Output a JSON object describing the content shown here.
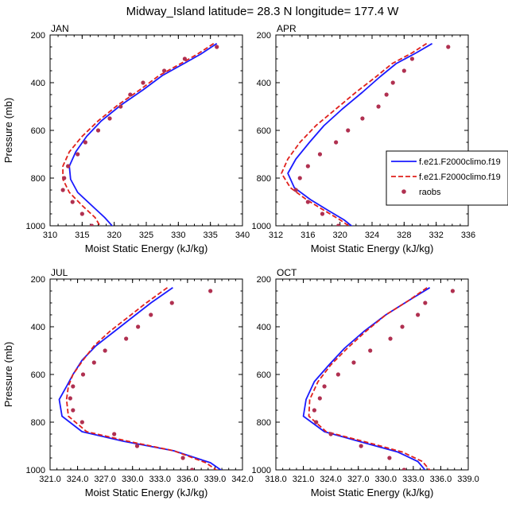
{
  "figure_title": "Midway_Island  latitude= 28.3 N longitude= 177.4 W",
  "legend": {
    "entries": [
      {
        "label": "f.e21.F2000climo.f19",
        "style": "solid",
        "color": "#1a1aff"
      },
      {
        "label": "f.e21.F2000climo.f19",
        "style": "dashed",
        "color": "#e0201c"
      },
      {
        "label": "raobs",
        "style": "dot",
        "color": "#b03050"
      }
    ]
  },
  "colors": {
    "model1": "#1a1aff",
    "model2": "#e0201c",
    "obs": "#b03050"
  },
  "chart_data": [
    {
      "type": "line",
      "panel_title": "JAN",
      "xlabel": "Moist Static Energy (kJ/kg)",
      "ylabel": "Pressure (mb)",
      "xlim": [
        310,
        340
      ],
      "ylim": [
        1000,
        200
      ],
      "y_reversed": true,
      "xticks": [
        310,
        315,
        320,
        325,
        330,
        335,
        340
      ],
      "xtick_labels": [
        "310",
        "315",
        "320",
        "325",
        "330",
        "335",
        "340"
      ],
      "yticks": [
        200,
        400,
        600,
        800,
        1000
      ],
      "ytick_labels": [
        "200",
        "400",
        "600",
        "800",
        "1000"
      ],
      "series": [
        {
          "role": "model1",
          "points": [
            [
              336.0,
              236
            ],
            [
              333.5,
              280
            ],
            [
              331.0,
              318
            ],
            [
              327.5,
              370
            ],
            [
              324.5,
              430
            ],
            [
              321.0,
              495
            ],
            [
              318.0,
              560
            ],
            [
              315.7,
              625
            ],
            [
              314.0,
              690
            ],
            [
              313.0,
              750
            ],
            [
              313.2,
              805
            ],
            [
              314.3,
              860
            ],
            [
              316.5,
              915
            ],
            [
              318.5,
              965
            ],
            [
              320.0,
              1010
            ]
          ]
        },
        {
          "role": "model2",
          "points": [
            [
              335.5,
              236
            ],
            [
              333.0,
              280
            ],
            [
              330.5,
              318
            ],
            [
              327.0,
              370
            ],
            [
              324.0,
              430
            ],
            [
              320.5,
              495
            ],
            [
              317.5,
              560
            ],
            [
              315.0,
              625
            ],
            [
              313.0,
              690
            ],
            [
              312.0,
              750
            ],
            [
              312.0,
              805
            ],
            [
              313.0,
              860
            ],
            [
              315.0,
              915
            ],
            [
              317.0,
              965
            ],
            [
              318.0,
              1010
            ]
          ]
        },
        {
          "role": "obs",
          "points": [
            [
              336.0,
              250
            ],
            [
              331.0,
              300
            ],
            [
              327.8,
              350
            ],
            [
              324.5,
              400
            ],
            [
              322.5,
              450
            ],
            [
              321.0,
              500
            ],
            [
              319.3,
              550
            ],
            [
              317.5,
              600
            ],
            [
              315.5,
              650
            ],
            [
              314.3,
              700
            ],
            [
              312.8,
              750
            ],
            [
              312.2,
              800
            ],
            [
              312.0,
              850
            ],
            [
              313.5,
              900
            ],
            [
              315.0,
              950
            ],
            [
              316.5,
              1000
            ]
          ]
        }
      ]
    },
    {
      "type": "line",
      "panel_title": "APR",
      "xlabel": "Moist Static Energy (kJ/kg)",
      "ylabel": "",
      "xlim": [
        312,
        336
      ],
      "ylim": [
        1000,
        200
      ],
      "y_reversed": true,
      "xticks": [
        312,
        316,
        320,
        324,
        328,
        332,
        336
      ],
      "xtick_labels": [
        "312",
        "316",
        "320",
        "324",
        "328",
        "332",
        "336"
      ],
      "yticks": [
        200,
        400,
        600,
        800,
        1000
      ],
      "ytick_labels": [
        "200",
        "400",
        "600",
        "800",
        "1000"
      ],
      "series": [
        {
          "role": "model1",
          "points": [
            [
              331.5,
              236
            ],
            [
              329.5,
              275
            ],
            [
              327.0,
              320
            ],
            [
              325.0,
              375
            ],
            [
              322.8,
              440
            ],
            [
              320.3,
              510
            ],
            [
              318.0,
              580
            ],
            [
              316.2,
              650
            ],
            [
              314.5,
              720
            ],
            [
              313.5,
              780
            ],
            [
              314.3,
              840
            ],
            [
              316.3,
              890
            ],
            [
              318.5,
              935
            ],
            [
              320.5,
              975
            ],
            [
              321.8,
              1010
            ]
          ]
        },
        {
          "role": "model2",
          "points": [
            [
              330.8,
              236
            ],
            [
              329.0,
              275
            ],
            [
              326.5,
              320
            ],
            [
              324.5,
              375
            ],
            [
              322.0,
              440
            ],
            [
              319.5,
              510
            ],
            [
              317.0,
              580
            ],
            [
              315.0,
              650
            ],
            [
              313.5,
              720
            ],
            [
              312.7,
              780
            ],
            [
              313.8,
              840
            ],
            [
              315.8,
              890
            ],
            [
              318.0,
              935
            ],
            [
              320.0,
              975
            ],
            [
              321.5,
              1010
            ]
          ]
        },
        {
          "role": "obs",
          "points": [
            [
              333.5,
              250
            ],
            [
              329.0,
              300
            ],
            [
              328.0,
              350
            ],
            [
              326.6,
              400
            ],
            [
              325.8,
              450
            ],
            [
              324.8,
              500
            ],
            [
              322.8,
              550
            ],
            [
              321.0,
              600
            ],
            [
              319.5,
              650
            ],
            [
              317.5,
              700
            ],
            [
              316.0,
              750
            ],
            [
              315.0,
              800
            ],
            [
              314.5,
              850
            ],
            [
              316.0,
              900
            ],
            [
              317.8,
              950
            ],
            [
              319.8,
              1000
            ]
          ]
        }
      ]
    },
    {
      "type": "line",
      "panel_title": "JUL",
      "xlabel": "Moist Static Energy (kJ/kg)",
      "ylabel": "Pressure (mb)",
      "xlim": [
        321,
        342
      ],
      "ylim": [
        1000,
        200
      ],
      "y_reversed": true,
      "xticks": [
        321,
        324,
        327,
        330,
        333,
        336,
        339,
        342
      ],
      "xtick_labels": [
        "321.0",
        "324.0",
        "327.0",
        "330.0",
        "333.0",
        "336.0",
        "339.0",
        "342.0"
      ],
      "yticks": [
        200,
        400,
        600,
        800,
        1000
      ],
      "ytick_labels": [
        "200",
        "400",
        "600",
        "800",
        "1000"
      ],
      "series": [
        {
          "role": "model1",
          "points": [
            [
              334.4,
              236
            ],
            [
              332.0,
              300
            ],
            [
              330.0,
              360
            ],
            [
              328.0,
              420
            ],
            [
              326.0,
              480
            ],
            [
              324.5,
              540
            ],
            [
              323.5,
              600
            ],
            [
              322.8,
              650
            ],
            [
              322.0,
              705
            ],
            [
              322.3,
              775
            ],
            [
              324.5,
              840
            ],
            [
              329.0,
              880
            ],
            [
              334.5,
              920
            ],
            [
              338.5,
              970
            ],
            [
              340.0,
              1010
            ]
          ]
        },
        {
          "role": "model2",
          "points": [
            [
              333.8,
              236
            ],
            [
              331.5,
              300
            ],
            [
              329.5,
              360
            ],
            [
              327.5,
              420
            ],
            [
              325.8,
              480
            ],
            [
              324.6,
              540
            ],
            [
              323.5,
              600
            ],
            [
              323.0,
              650
            ],
            [
              322.8,
              705
            ],
            [
              323.0,
              775
            ],
            [
              325.0,
              840
            ],
            [
              329.5,
              880
            ],
            [
              334.5,
              920
            ],
            [
              338.0,
              970
            ],
            [
              339.5,
              1010
            ]
          ]
        },
        {
          "role": "obs",
          "points": [
            [
              338.5,
              250
            ],
            [
              334.3,
              300
            ],
            [
              332.0,
              350
            ],
            [
              330.6,
              400
            ],
            [
              329.3,
              450
            ],
            [
              327.0,
              500
            ],
            [
              325.8,
              550
            ],
            [
              324.6,
              600
            ],
            [
              323.5,
              650
            ],
            [
              323.2,
              700
            ],
            [
              323.5,
              750
            ],
            [
              324.5,
              800
            ],
            [
              328.0,
              850
            ],
            [
              330.5,
              900
            ],
            [
              335.5,
              950
            ],
            [
              336.5,
              1000
            ]
          ]
        }
      ]
    },
    {
      "type": "line",
      "panel_title": "OCT",
      "xlabel": "Moist Static Energy (kJ/kg)",
      "ylabel": "",
      "xlim": [
        318,
        339
      ],
      "ylim": [
        1000,
        200
      ],
      "y_reversed": true,
      "xticks": [
        318,
        321,
        324,
        327,
        330,
        333,
        336,
        339
      ],
      "xtick_labels": [
        "318.0",
        "321.0",
        "324.0",
        "327.0",
        "330.0",
        "333.0",
        "336.0",
        "339.0"
      ],
      "yticks": [
        200,
        400,
        600,
        800,
        1000
      ],
      "ytick_labels": [
        "200",
        "400",
        "600",
        "800",
        "1000"
      ],
      "series": [
        {
          "role": "model1",
          "points": [
            [
              334.8,
              236
            ],
            [
              332.5,
              290
            ],
            [
              330.0,
              350
            ],
            [
              327.6,
              420
            ],
            [
              325.5,
              490
            ],
            [
              323.8,
              560
            ],
            [
              322.2,
              630
            ],
            [
              321.3,
              705
            ],
            [
              321.0,
              775
            ],
            [
              323.3,
              840
            ],
            [
              327.5,
              885
            ],
            [
              331.3,
              925
            ],
            [
              333.5,
              965
            ],
            [
              334.5,
              1010
            ]
          ]
        },
        {
          "role": "model2",
          "points": [
            [
              334.5,
              236
            ],
            [
              332.5,
              290
            ],
            [
              330.0,
              350
            ],
            [
              327.8,
              420
            ],
            [
              325.8,
              490
            ],
            [
              324.0,
              560
            ],
            [
              322.6,
              630
            ],
            [
              321.7,
              705
            ],
            [
              321.6,
              775
            ],
            [
              323.5,
              840
            ],
            [
              328.0,
              885
            ],
            [
              331.8,
              925
            ],
            [
              334.0,
              965
            ],
            [
              335.0,
              1010
            ]
          ]
        },
        {
          "role": "obs",
          "points": [
            [
              337.3,
              250
            ],
            [
              334.3,
              300
            ],
            [
              333.5,
              350
            ],
            [
              331.8,
              400
            ],
            [
              330.5,
              450
            ],
            [
              328.3,
              500
            ],
            [
              326.5,
              550
            ],
            [
              324.8,
              600
            ],
            [
              323.3,
              650
            ],
            [
              322.8,
              700
            ],
            [
              322.2,
              750
            ],
            [
              322.4,
              800
            ],
            [
              324.0,
              850
            ],
            [
              327.3,
              900
            ],
            [
              330.4,
              950
            ],
            [
              332.0,
              1000
            ]
          ]
        }
      ]
    }
  ]
}
